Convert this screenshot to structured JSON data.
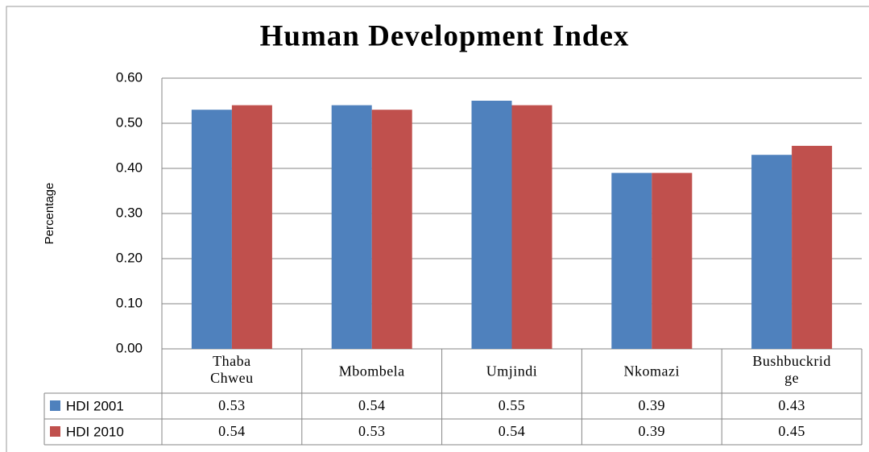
{
  "chart_data": {
    "type": "bar",
    "title": "Human Development Index",
    "y_label": "Percentage",
    "categories": [
      "Thaba Chweu",
      "Mbombela",
      "Umjindi",
      "Nkomazi",
      "Bushbuckridge"
    ],
    "series": [
      {
        "name": "HDI 2001",
        "color": "#4f81bd",
        "values": [
          0.53,
          0.54,
          0.55,
          0.39,
          0.43
        ]
      },
      {
        "name": "HDI 2010",
        "color": "#c0504d",
        "values": [
          0.54,
          0.53,
          0.54,
          0.39,
          0.45
        ]
      }
    ],
    "ylim": [
      0,
      0.6
    ],
    "yticks": [
      {
        "value": 0,
        "label": "0.00"
      },
      {
        "value": 0.1,
        "label": "0.10"
      },
      {
        "value": 0.2,
        "label": "0.20"
      },
      {
        "value": 0.3,
        "label": "0.30"
      },
      {
        "value": 0.4,
        "label": "0.40"
      },
      {
        "value": 0.5,
        "label": "0.50"
      },
      {
        "value": 0.6,
        "label": "0.60"
      }
    ],
    "grid": true,
    "data_table": true
  }
}
